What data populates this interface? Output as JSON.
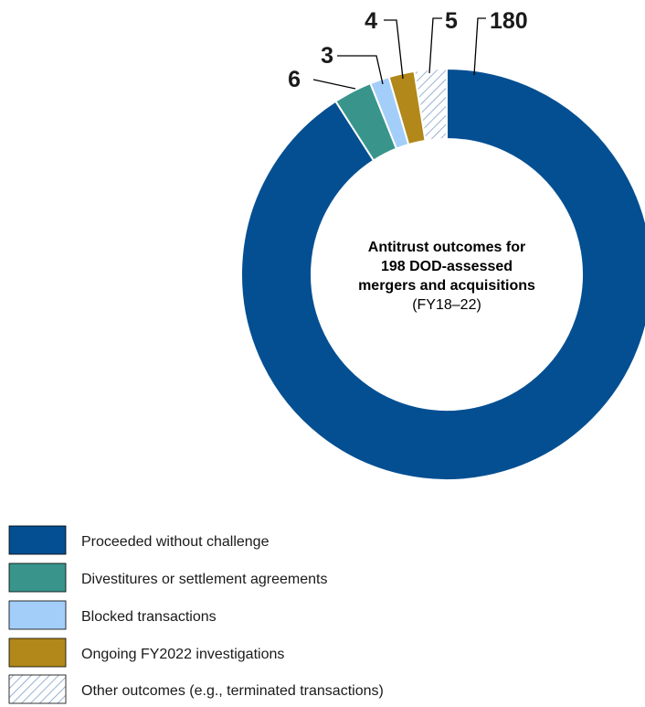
{
  "chart_data": {
    "type": "pie",
    "donut": true,
    "center_title_lines": [
      "Antitrust outcomes for",
      "198 DOD-assessed",
      "mergers and acquisitions"
    ],
    "center_subtitle": "(FY18–22)",
    "slices": [
      {
        "label": "Proceeded without challenge",
        "value": 180,
        "display_value": "180",
        "color": "#044f92",
        "pattern": "solid"
      },
      {
        "label": "Divestitures or settlement agreements",
        "value": 6,
        "display_value": "6",
        "color": "#39958c",
        "pattern": "solid"
      },
      {
        "label": "Blocked transactions",
        "value": 3,
        "display_value": "3",
        "color": "#a3cef9",
        "pattern": "solid"
      },
      {
        "label": "Ongoing FY2022 investigations",
        "value": 4,
        "display_value": "4",
        "color": "#b18819",
        "pattern": "solid"
      },
      {
        "label": "Other outcomes (e.g., terminated transactions)",
        "value": 5,
        "display_value": "5",
        "color": "#7f9fc7",
        "pattern": "hatched"
      }
    ],
    "legend": {
      "position": "bottom-left",
      "items": [
        "Proceeded without challenge",
        "Divestitures or settlement agreements",
        "Blocked transactions",
        "Ongoing FY2022 investigations",
        "Other outcomes (e.g., terminated transactions)"
      ]
    }
  }
}
